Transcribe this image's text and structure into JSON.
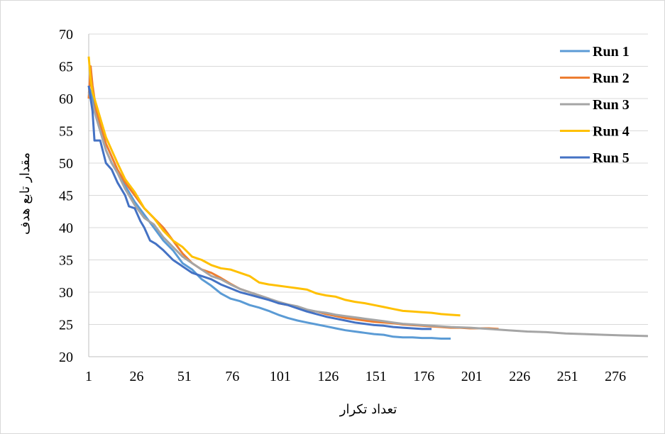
{
  "chart_data": {
    "type": "line",
    "xlabel": "تعداد تکرار",
    "ylabel": "مقدار تابع هدف",
    "xlim": [
      1,
      293
    ],
    "ylim": [
      20,
      70
    ],
    "x_ticks": [
      1,
      26,
      51,
      76,
      101,
      126,
      151,
      176,
      201,
      226,
      251,
      276
    ],
    "y_ticks": [
      20,
      25,
      30,
      35,
      40,
      45,
      50,
      55,
      60,
      65,
      70
    ],
    "grid": "horizontal",
    "legend_position": "top-right",
    "series": [
      {
        "name": "Run 1",
        "color": "#5B9BD5",
        "points": [
          [
            1,
            62
          ],
          [
            3,
            60
          ],
          [
            5,
            57
          ],
          [
            8,
            54
          ],
          [
            10,
            52
          ],
          [
            13,
            50
          ],
          [
            16,
            48.5
          ],
          [
            20,
            46.5
          ],
          [
            25,
            44
          ],
          [
            30,
            42
          ],
          [
            35,
            40
          ],
          [
            40,
            38
          ],
          [
            45,
            36.5
          ],
          [
            50,
            34.5
          ],
          [
            55,
            33.5
          ],
          [
            60,
            32
          ],
          [
            65,
            31
          ],
          [
            70,
            29.8
          ],
          [
            75,
            29
          ],
          [
            80,
            28.6
          ],
          [
            85,
            28
          ],
          [
            90,
            27.6
          ],
          [
            95,
            27.1
          ],
          [
            100,
            26.5
          ],
          [
            105,
            26
          ],
          [
            110,
            25.6
          ],
          [
            115,
            25.3
          ],
          [
            120,
            25
          ],
          [
            125,
            24.7
          ],
          [
            130,
            24.4
          ],
          [
            135,
            24.1
          ],
          [
            140,
            23.9
          ],
          [
            145,
            23.7
          ],
          [
            150,
            23.5
          ],
          [
            155,
            23.4
          ],
          [
            160,
            23.1
          ],
          [
            165,
            23
          ],
          [
            170,
            23
          ],
          [
            175,
            22.9
          ],
          [
            180,
            22.9
          ],
          [
            185,
            22.8
          ],
          [
            190,
            22.8
          ]
        ]
      },
      {
        "name": "Run 2",
        "color": "#ED7D31",
        "points": [
          [
            1,
            60
          ],
          [
            2,
            65
          ],
          [
            3,
            62
          ],
          [
            5,
            58
          ],
          [
            8,
            55
          ],
          [
            10,
            53
          ],
          [
            13,
            51
          ],
          [
            16,
            49
          ],
          [
            20,
            47
          ],
          [
            25,
            45
          ],
          [
            30,
            43
          ],
          [
            35,
            41.5
          ],
          [
            40,
            40
          ],
          [
            45,
            38
          ],
          [
            50,
            36
          ],
          [
            55,
            34.5
          ],
          [
            60,
            33.5
          ],
          [
            65,
            33
          ],
          [
            70,
            32.2
          ],
          [
            75,
            31.3
          ],
          [
            80,
            30.5
          ],
          [
            85,
            30
          ],
          [
            90,
            29.5
          ],
          [
            95,
            29
          ],
          [
            100,
            28.3
          ],
          [
            105,
            28
          ],
          [
            110,
            27.6
          ],
          [
            115,
            27.2
          ],
          [
            120,
            27
          ],
          [
            125,
            26.6
          ],
          [
            130,
            26.3
          ],
          [
            135,
            26
          ],
          [
            140,
            25.8
          ],
          [
            145,
            25.6
          ],
          [
            150,
            25.4
          ],
          [
            155,
            25.3
          ],
          [
            160,
            25.2
          ],
          [
            165,
            25
          ],
          [
            170,
            24.9
          ],
          [
            175,
            24.8
          ],
          [
            180,
            24.7
          ],
          [
            185,
            24.6
          ],
          [
            190,
            24.5
          ],
          [
            195,
            24.5
          ],
          [
            200,
            24.4
          ],
          [
            205,
            24.4
          ],
          [
            210,
            24.4
          ],
          [
            215,
            24.3
          ]
        ]
      },
      {
        "name": "Run 3",
        "color": "#A5A5A5",
        "points": [
          [
            1,
            61
          ],
          [
            3,
            59
          ],
          [
            5,
            57
          ],
          [
            8,
            54
          ],
          [
            10,
            52
          ],
          [
            13,
            50
          ],
          [
            16,
            48.5
          ],
          [
            20,
            46
          ],
          [
            25,
            43.5
          ],
          [
            30,
            41.5
          ],
          [
            35,
            40.5
          ],
          [
            40,
            38.5
          ],
          [
            45,
            37
          ],
          [
            50,
            35.5
          ],
          [
            55,
            34.5
          ],
          [
            60,
            33.5
          ],
          [
            65,
            32.5
          ],
          [
            70,
            32
          ],
          [
            75,
            31.2
          ],
          [
            80,
            30.5
          ],
          [
            85,
            30
          ],
          [
            90,
            29.5
          ],
          [
            95,
            29
          ],
          [
            100,
            28.5
          ],
          [
            105,
            28.1
          ],
          [
            110,
            27.8
          ],
          [
            115,
            27.3
          ],
          [
            120,
            27
          ],
          [
            125,
            26.8
          ],
          [
            130,
            26.5
          ],
          [
            135,
            26.3
          ],
          [
            140,
            26.1
          ],
          [
            145,
            25.9
          ],
          [
            150,
            25.7
          ],
          [
            155,
            25.5
          ],
          [
            160,
            25.3
          ],
          [
            165,
            25.1
          ],
          [
            170,
            25
          ],
          [
            175,
            24.9
          ],
          [
            180,
            24.8
          ],
          [
            190,
            24.6
          ],
          [
            200,
            24.5
          ],
          [
            210,
            24.3
          ],
          [
            220,
            24.1
          ],
          [
            230,
            23.9
          ],
          [
            240,
            23.8
          ],
          [
            250,
            23.6
          ],
          [
            260,
            23.5
          ],
          [
            270,
            23.4
          ],
          [
            280,
            23.3
          ],
          [
            293,
            23.2
          ]
        ]
      },
      {
        "name": "Run 4",
        "color": "#FFC000",
        "points": [
          [
            1,
            66.5
          ],
          [
            2,
            63
          ],
          [
            3,
            61
          ],
          [
            5,
            59
          ],
          [
            8,
            56
          ],
          [
            10,
            54
          ],
          [
            13,
            52
          ],
          [
            16,
            50
          ],
          [
            20,
            47.5
          ],
          [
            25,
            45.5
          ],
          [
            30,
            43
          ],
          [
            35,
            41.5
          ],
          [
            40,
            39.5
          ],
          [
            45,
            38
          ],
          [
            50,
            37
          ],
          [
            55,
            35.5
          ],
          [
            60,
            35
          ],
          [
            65,
            34.2
          ],
          [
            70,
            33.7
          ],
          [
            75,
            33.5
          ],
          [
            80,
            33
          ],
          [
            85,
            32.5
          ],
          [
            90,
            31.5
          ],
          [
            95,
            31.2
          ],
          [
            100,
            31
          ],
          [
            105,
            30.8
          ],
          [
            110,
            30.6
          ],
          [
            115,
            30.4
          ],
          [
            120,
            29.8
          ],
          [
            125,
            29.5
          ],
          [
            130,
            29.3
          ],
          [
            135,
            28.8
          ],
          [
            140,
            28.5
          ],
          [
            145,
            28.3
          ],
          [
            150,
            28
          ],
          [
            155,
            27.7
          ],
          [
            160,
            27.4
          ],
          [
            165,
            27.1
          ],
          [
            170,
            27
          ],
          [
            175,
            26.9
          ],
          [
            180,
            26.8
          ],
          [
            185,
            26.6
          ],
          [
            190,
            26.5
          ],
          [
            195,
            26.4
          ]
        ]
      },
      {
        "name": "Run 5",
        "color": "#4472C4",
        "points": [
          [
            1,
            62
          ],
          [
            3,
            58
          ],
          [
            4,
            53.5
          ],
          [
            7,
            53.5
          ],
          [
            10,
            50
          ],
          [
            13,
            49
          ],
          [
            16,
            47
          ],
          [
            18,
            46
          ],
          [
            20,
            45
          ],
          [
            22,
            43.3
          ],
          [
            25,
            43
          ],
          [
            28,
            41
          ],
          [
            30,
            40
          ],
          [
            33,
            38
          ],
          [
            36,
            37.5
          ],
          [
            40,
            36.5
          ],
          [
            45,
            35
          ],
          [
            50,
            34
          ],
          [
            55,
            33
          ],
          [
            60,
            32.5
          ],
          [
            65,
            32
          ],
          [
            70,
            31.2
          ],
          [
            75,
            30.6
          ],
          [
            80,
            30
          ],
          [
            85,
            29.6
          ],
          [
            90,
            29.2
          ],
          [
            95,
            28.8
          ],
          [
            100,
            28.3
          ],
          [
            105,
            28
          ],
          [
            110,
            27.5
          ],
          [
            115,
            27
          ],
          [
            120,
            26.6
          ],
          [
            125,
            26.2
          ],
          [
            130,
            25.9
          ],
          [
            135,
            25.6
          ],
          [
            140,
            25.3
          ],
          [
            145,
            25.1
          ],
          [
            150,
            24.9
          ],
          [
            155,
            24.8
          ],
          [
            160,
            24.6
          ],
          [
            165,
            24.5
          ],
          [
            170,
            24.4
          ],
          [
            175,
            24.3
          ],
          [
            180,
            24.3
          ]
        ]
      }
    ]
  }
}
